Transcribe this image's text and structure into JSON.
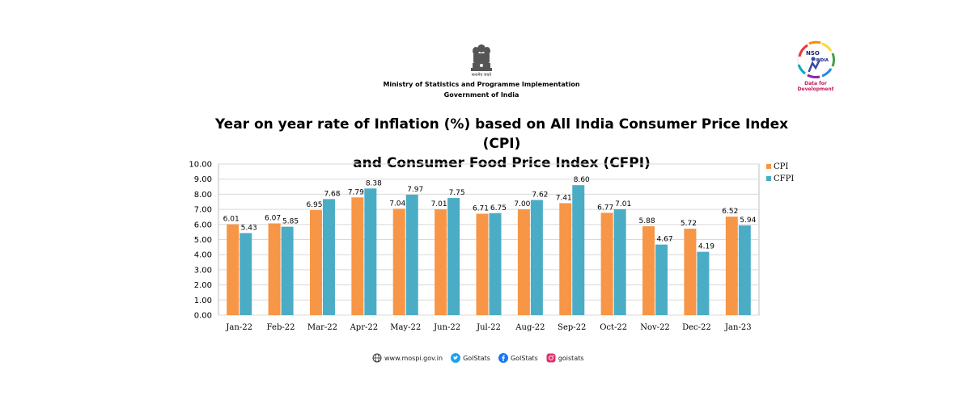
{
  "header": {
    "ministry": "Ministry of Statistics and Programme Implementation",
    "government": "Government of India",
    "motto": "सत्यमेव जयते"
  },
  "logo": {
    "name": "NSO INDIA",
    "tagline": "Data for Development"
  },
  "title": {
    "line1": "Year on year rate of Inflation (%) based on All India Consumer Price Index (CPI)",
    "line2": "and Consumer Food Price Index (CFPI)"
  },
  "colors": {
    "cpi": "#f79646",
    "cfpi": "#4bacc6"
  },
  "chart_data": {
    "type": "bar",
    "categories": [
      "Jan-22",
      "Feb-22",
      "Mar-22",
      "Apr-22",
      "May-22",
      "Jun-22",
      "Jul-22",
      "Aug-22",
      "Sep-22",
      "Oct-22",
      "Nov-22",
      "Dec-22",
      "Jan-23"
    ],
    "series": [
      {
        "name": "CPI",
        "values": [
          6.01,
          6.07,
          6.95,
          7.79,
          7.04,
          7.01,
          6.71,
          7.0,
          7.41,
          6.77,
          5.88,
          5.72,
          6.52
        ]
      },
      {
        "name": "CFPI",
        "values": [
          5.43,
          5.85,
          7.68,
          8.38,
          7.97,
          7.75,
          6.75,
          7.62,
          8.6,
          7.01,
          4.67,
          4.19,
          5.94
        ]
      }
    ],
    "ylim": [
      0,
      10
    ],
    "yticks": [
      "0.00",
      "1.00",
      "2.00",
      "3.00",
      "4.00",
      "5.00",
      "6.00",
      "7.00",
      "8.00",
      "9.00",
      "10.00"
    ],
    "grid": true,
    "legend": "right"
  },
  "footer": {
    "website": "www.mospi.gov.in",
    "twitter": "GoIStats",
    "facebook": "GoIStats",
    "instagram": "goistats"
  }
}
